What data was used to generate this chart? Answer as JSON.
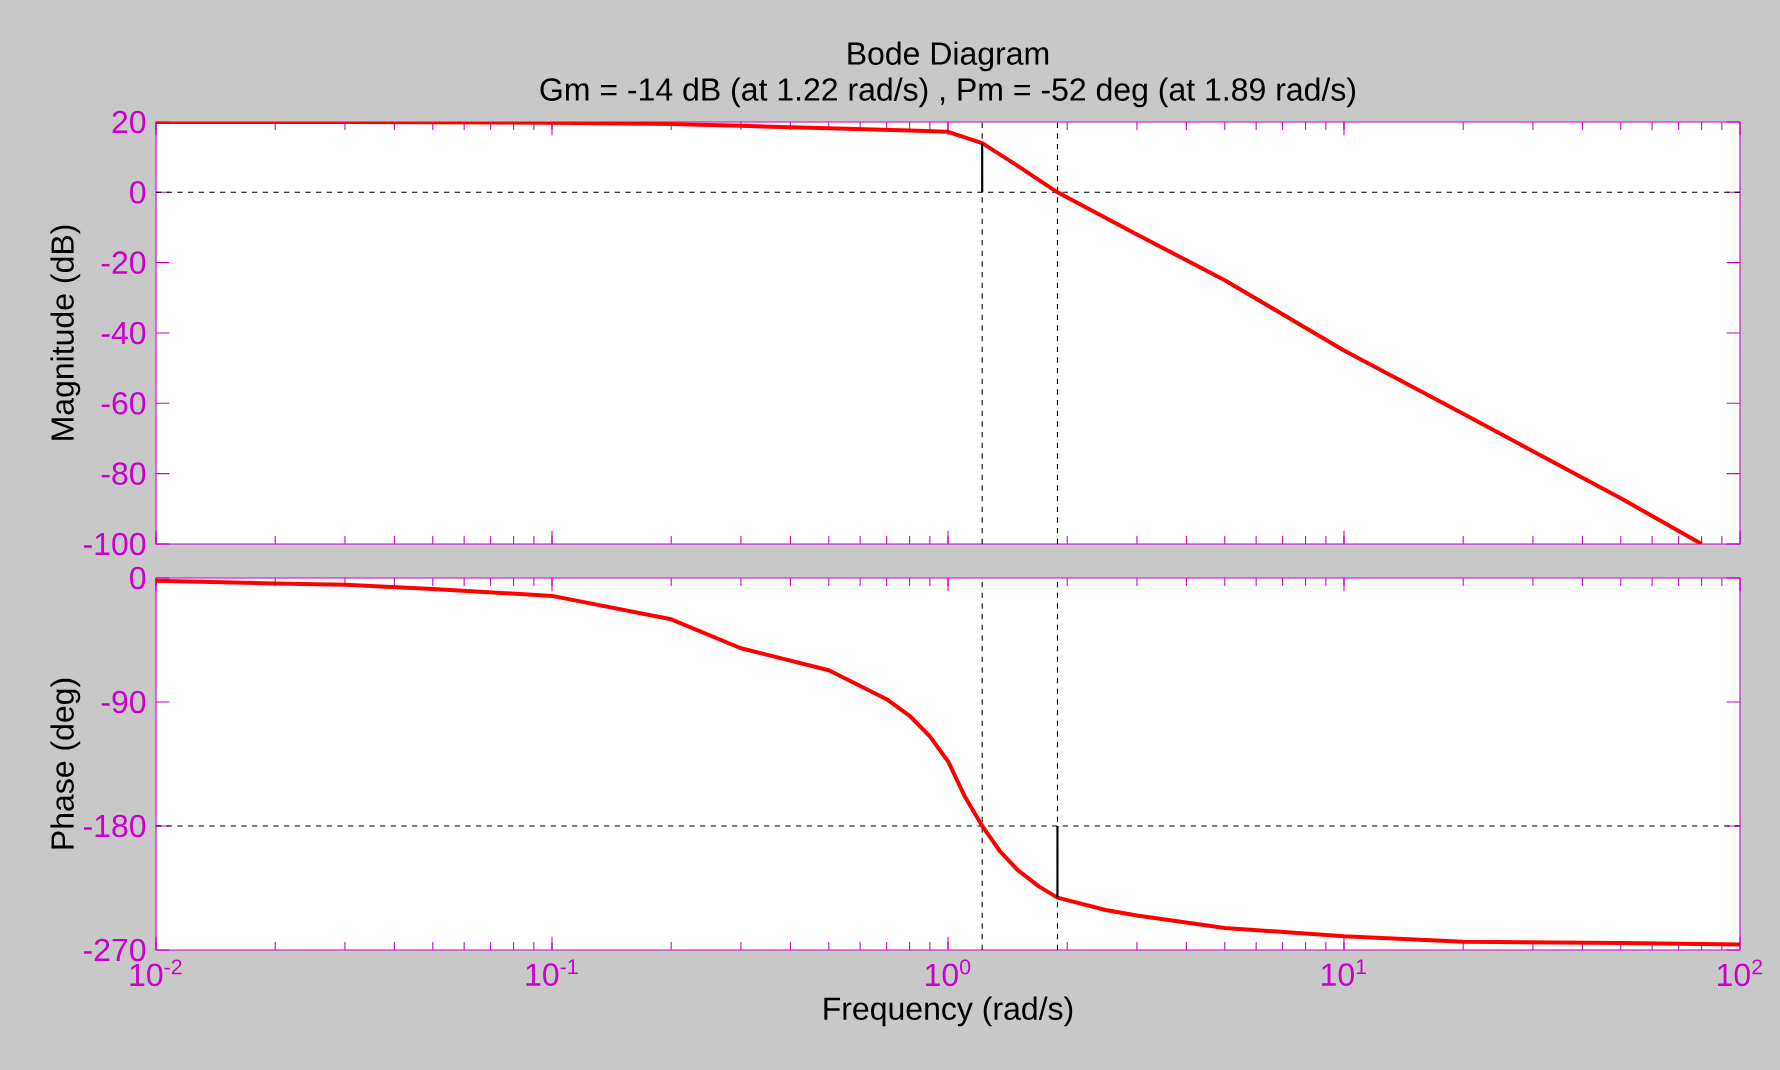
{
  "chart_data": [
    {
      "type": "line",
      "title": "Bode Diagram",
      "subtitle": "Gm = -14 dB (at 1.22 rad/s) ,  Pm = -52 deg (at 1.89 rad/s)",
      "ylabel": "Magnitude (dB)",
      "log": "x",
      "xlim": [
        0.01,
        100
      ],
      "ylim": [
        -100,
        20
      ],
      "xticks": [
        0.01,
        0.1,
        1,
        10,
        100
      ],
      "yticks": [
        -100,
        -80,
        -60,
        -40,
        -20,
        0,
        20
      ],
      "tick_labels": "y",
      "ref_lines": [
        {
          "axis": "y",
          "value": 0,
          "color": "#000000",
          "line_style": "dashed"
        },
        {
          "axis": "x",
          "value": 1.22,
          "color": "#000000",
          "line_style": "dashed"
        },
        {
          "axis": "x",
          "value": 1.89,
          "color": "#000000",
          "line_style": "dashed"
        }
      ],
      "series": [
        {
          "color": "#ff0000",
          "x": [
            0.01,
            0.03,
            0.1,
            0.2,
            0.3,
            0.5,
            0.8,
            1.0,
            1.22,
            1.5,
            1.89,
            3,
            5,
            10,
            20,
            50,
            80
          ],
          "values": [
            20,
            20,
            19.8,
            19.4,
            18.9,
            18.2,
            17.6,
            17.2,
            14,
            7.5,
            0,
            -12,
            -25,
            -45,
            -63,
            -87,
            -100
          ]
        },
        {
          "color": "#000000",
          "x": [
            1.22,
            1.22
          ],
          "values": [
            0,
            14
          ]
        }
      ]
    },
    {
      "type": "line",
      "xlabel": "Frequency  (rad/s)",
      "ylabel": "Phase (deg)",
      "log": "x",
      "xlim": [
        0.01,
        100
      ],
      "ylim": [
        -270,
        0
      ],
      "xticks": [
        {
          "value": 0.01,
          "label": "10$^{-2}$"
        },
        {
          "value": 0.1,
          "label": "10$^{-1}$"
        },
        {
          "value": 1,
          "label": "10$^{0}$"
        },
        {
          "value": 10,
          "label": "10$^{1}$"
        },
        {
          "value": 100,
          "label": "10$^{2}$"
        }
      ],
      "yticks": [
        -270,
        -180,
        -90,
        0
      ],
      "ref_lines": [
        {
          "axis": "y",
          "value": -180,
          "color": "#000000",
          "line_style": "dashed"
        },
        {
          "axis": "x",
          "value": 1.22,
          "color": "#000000",
          "line_style": "dashed"
        },
        {
          "axis": "x",
          "value": 1.89,
          "color": "#000000",
          "line_style": "dashed"
        }
      ],
      "series": [
        {
          "color": "#ff0000",
          "x": [
            0.01,
            0.02,
            0.03,
            0.05,
            0.1,
            0.2,
            0.3,
            0.5,
            0.7,
            0.8,
            0.9,
            1.0,
            1.1,
            1.22,
            1.35,
            1.5,
            1.7,
            1.89,
            2.5,
            3,
            5,
            10,
            20,
            50,
            100
          ],
          "values": [
            -2,
            -4,
            -5,
            -8,
            -13,
            -30,
            -51,
            -67,
            -88,
            -100,
            -115,
            -133,
            -158,
            -180,
            -198,
            -212,
            -224,
            -232,
            -241,
            -245,
            -254,
            -260,
            -264,
            -265,
            -266
          ]
        },
        {
          "color": "#000000",
          "x": [
            1.89,
            1.89
          ],
          "values": [
            -180,
            -232
          ]
        }
      ]
    }
  ]
}
